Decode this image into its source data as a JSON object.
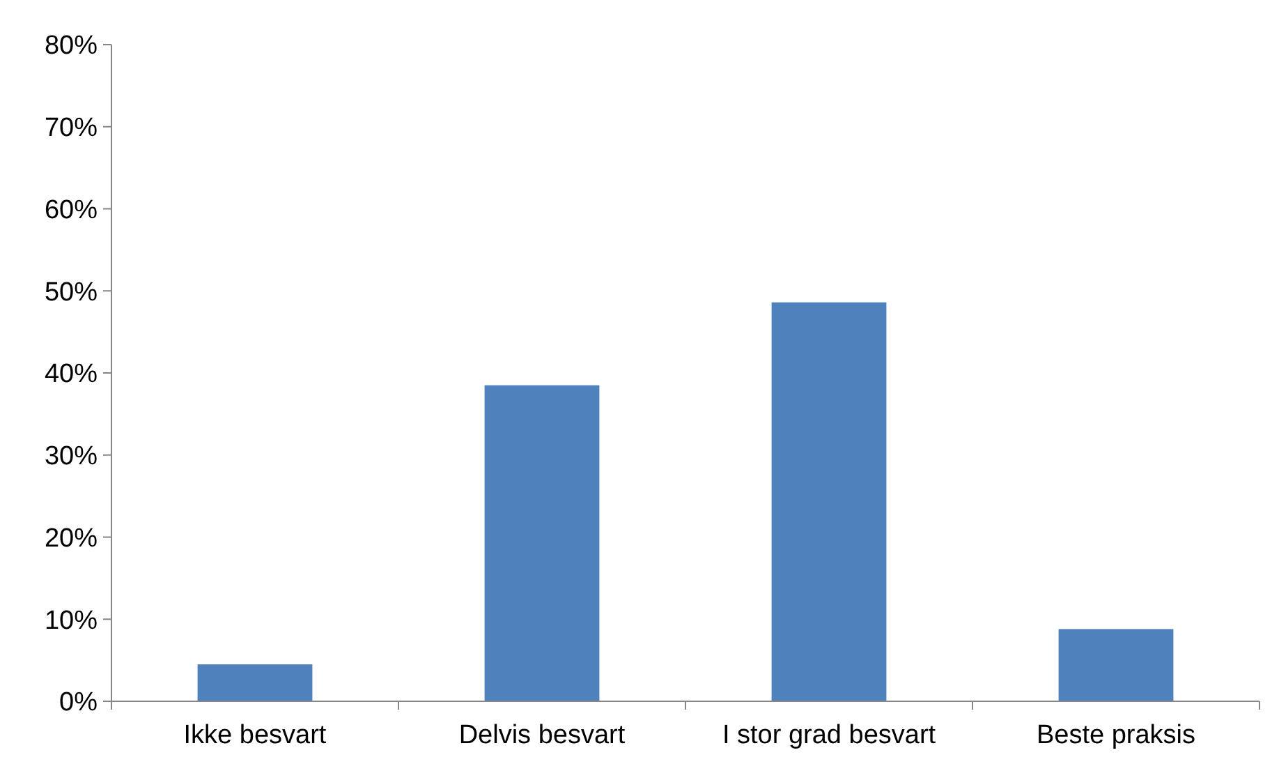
{
  "chart_data": {
    "type": "bar",
    "categories": [
      "Ikke besvart",
      "Delvis besvart",
      "I stor grad besvart",
      "Beste praksis"
    ],
    "values": [
      4.5,
      38.5,
      48.6,
      8.8
    ],
    "color": "#4f81bd",
    "ylim": [
      0,
      80
    ],
    "yticks": [
      {
        "value": 0,
        "label": "0%"
      },
      {
        "value": 10,
        "label": "10%"
      },
      {
        "value": 20,
        "label": "20%"
      },
      {
        "value": 30,
        "label": "30%"
      },
      {
        "value": 40,
        "label": "40%"
      },
      {
        "value": 50,
        "label": "50%"
      },
      {
        "value": 60,
        "label": "60%"
      },
      {
        "value": 70,
        "label": "70%"
      },
      {
        "value": 80,
        "label": "80%"
      }
    ],
    "grid": false
  }
}
